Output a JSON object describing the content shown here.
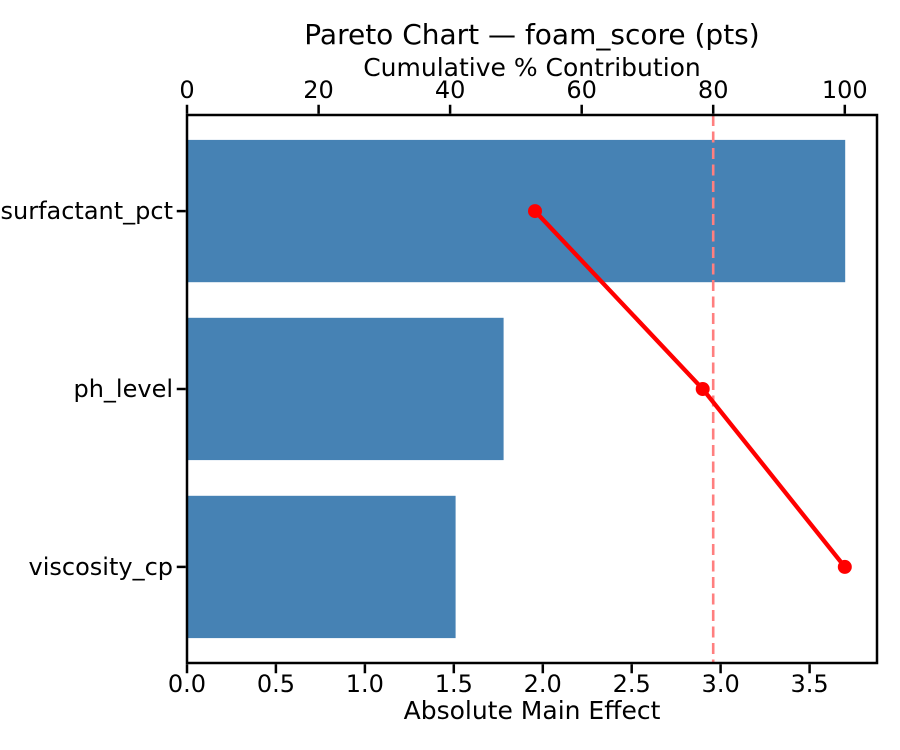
{
  "figure": {
    "background": "#FFFFFF"
  },
  "chart_data": {
    "type": "pareto",
    "subtype": "horizontal bar + cumulative line (dual x-axes)",
    "title": "Pareto Chart — foam_score (pts)",
    "categories": [
      "surfactant_pct",
      "ph_level",
      "viscosity_cp"
    ],
    "series": [
      {
        "name": "Absolute Main Effect",
        "type": "bar",
        "axis": "bottom",
        "color": "#4682B4",
        "values": [
          3.7,
          1.78,
          1.51
        ]
      },
      {
        "name": "Cumulative % Contribution",
        "type": "line",
        "axis": "top",
        "color": "#FF0000",
        "marker": "circle",
        "values": [
          52.9,
          78.4,
          100.0
        ]
      }
    ],
    "threshold": {
      "axis": "top",
      "value": 80,
      "style": "dashed",
      "color": "#FF7F7F"
    },
    "top_axis": {
      "label": "Cumulative % Contribution",
      "tick_labels": [
        "0",
        "20",
        "40",
        "60",
        "80",
        "100"
      ],
      "tick_values": [
        0,
        20,
        40,
        60,
        80,
        100
      ],
      "min": 0,
      "max": 104.9
    },
    "bottom_axis": {
      "label": "Absolute Main Effect",
      "tick_labels": [
        "0.0",
        "0.5",
        "1.0",
        "1.5",
        "2.0",
        "2.5",
        "3.0",
        "3.5"
      ],
      "tick_values": [
        0,
        0.5,
        1.0,
        1.5,
        2.0,
        2.5,
        3.0,
        3.5
      ],
      "min": 0,
      "max": 3.879
    },
    "grid": false,
    "legend": "none",
    "bar_height_fraction": 0.8,
    "colors": {
      "bar": "#4682B4",
      "line": "#FF0000",
      "marker": "#FF0000",
      "threshold": "#FF7F7F",
      "axis": "#000000",
      "text": "#000000",
      "background": "#FFFFFF"
    }
  }
}
